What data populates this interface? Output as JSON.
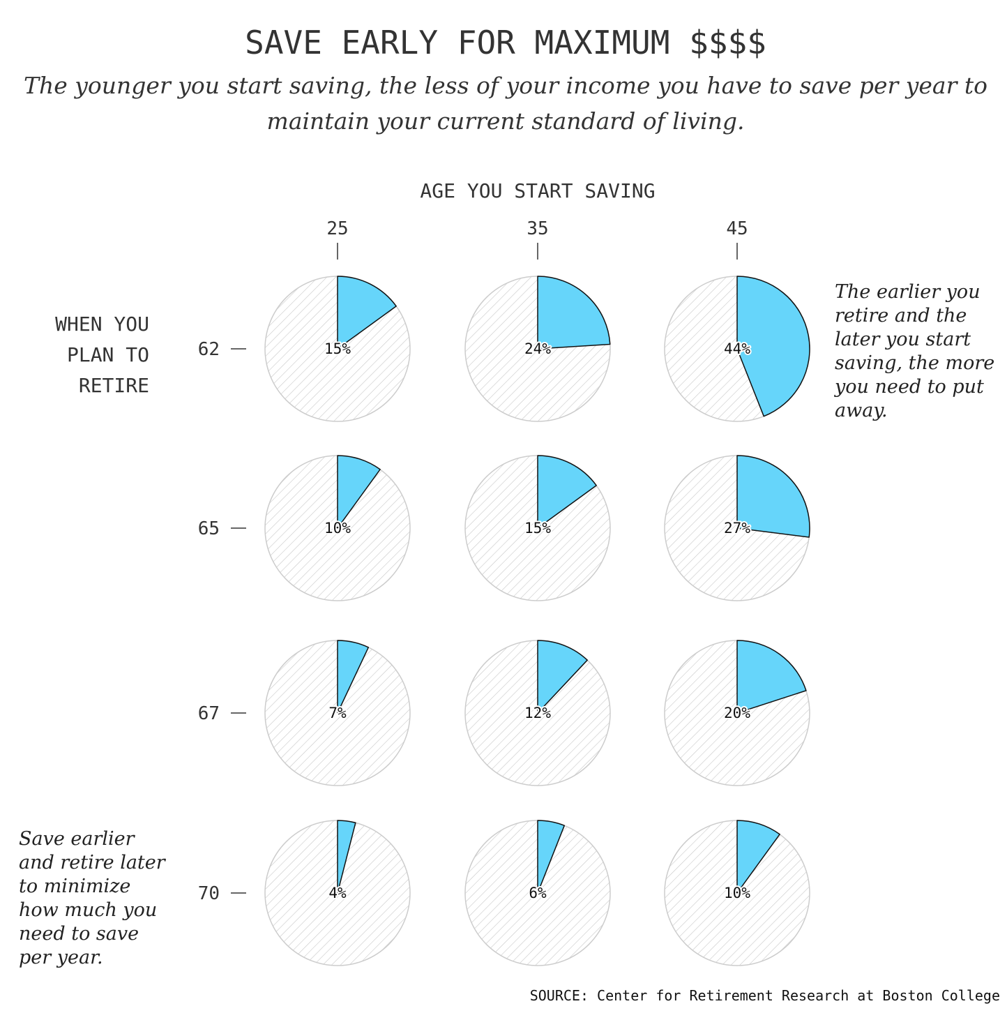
{
  "chart_data": {
    "type": "pie",
    "title": "SAVE EARLY FOR MAXIMUM $$$$",
    "subtitle_lines": [
      "The younger you start saving, the less of your income you have to save per year to",
      "maintain your current standard of living."
    ],
    "column_axis_label": "AGE YOU START SAVING",
    "columns": [
      "25",
      "35",
      "45"
    ],
    "row_axis_label_lines": [
      "WHEN YOU",
      "PLAN TO",
      "RETIRE"
    ],
    "rows": [
      "62",
      "65",
      "67",
      "70"
    ],
    "values": [
      [
        15,
        24,
        44
      ],
      [
        10,
        15,
        27
      ],
      [
        7,
        12,
        20
      ],
      [
        4,
        6,
        10
      ]
    ],
    "value_labels": [
      [
        "15%",
        "24%",
        "44%"
      ],
      [
        "10%",
        "15%",
        "27%"
      ],
      [
        "7%",
        "12%",
        "20%"
      ],
      [
        "4%",
        "6%",
        "10%"
      ]
    ],
    "annotations": [
      {
        "id": "later-start",
        "lines": [
          "The earlier you",
          "retire and the",
          "later you start",
          "saving, the more",
          "you need to put",
          "away."
        ]
      },
      {
        "id": "save-earlier",
        "lines": [
          "Save earlier",
          "and retire later",
          "to minimize",
          "how much you",
          "need to save",
          "per year."
        ]
      }
    ],
    "source": "SOURCE: Center for Retirement Research at Boston College",
    "colors": {
      "slice": "#66d5fa",
      "remainder_hatch": "#cccccc",
      "text": "#333333"
    }
  }
}
